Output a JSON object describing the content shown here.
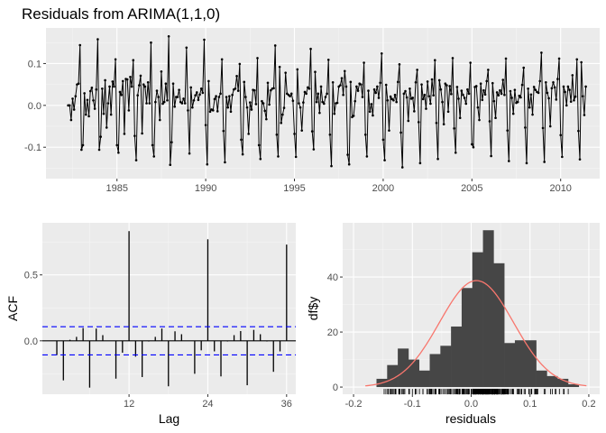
{
  "chart_data": [
    {
      "type": "line",
      "title": "Residuals from ARIMA(1,1,0)",
      "xlabel": "",
      "ylabel": "",
      "x_ticks": [
        1985,
        1990,
        1995,
        2000,
        2005,
        2010
      ],
      "y_ticks": [
        -0.1,
        0.0,
        0.1
      ],
      "y_tick_labels": [
        "-0.1",
        "0.0",
        "0.1"
      ],
      "xlim": [
        1981.0,
        2012.2
      ],
      "ylim": [
        -0.175,
        0.185
      ],
      "grid": true,
      "start": 1982.25,
      "frequency": 12,
      "series": [
        {
          "name": "residuals",
          "values": [
            0.0,
            0.0,
            -0.035,
            0.016,
            -0.01,
            0.022,
            0.05,
            0.052,
            0.144,
            -0.106,
            -0.095,
            0.029,
            -0.022,
            0.013,
            -0.026,
            0.034,
            0.042,
            0.012,
            -0.008,
            0.038,
            0.158,
            -0.106,
            -0.075,
            0.04,
            -0.02,
            0.06,
            -0.053,
            0.005,
            0.045,
            -0.022,
            0.057,
            0.045,
            0.11,
            -0.095,
            -0.113,
            0.032,
            0.025,
            0.058,
            -0.068,
            0.063,
            0.062,
            -0.012,
            0.068,
            0.045,
            0.108,
            -0.073,
            -0.131,
            0.024,
            0.048,
            0.071,
            -0.067,
            0.05,
            0.045,
            0.005,
            0.055,
            0.005,
            0.15,
            -0.095,
            -0.122,
            0.008,
            0.035,
            0.02,
            -0.035,
            0.081,
            0.004,
            0.008,
            0.052,
            0.012,
            0.165,
            -0.142,
            -0.088,
            0.052,
            -0.003,
            0.02,
            0.02,
            0.037,
            0.008,
            0.005,
            0.016,
            0.005,
            0.138,
            -0.012,
            -0.115,
            0.043,
            -0.005,
            0.012,
            0.024,
            0.031,
            0.013,
            0.026,
            0.04,
            0.03,
            0.157,
            -0.047,
            -0.141,
            0.058,
            -0.015,
            -0.01,
            -0.012,
            0.015,
            0.022,
            -0.014,
            0.02,
            0.028,
            0.11,
            -0.061,
            -0.136,
            0.02,
            -0.005,
            0.022,
            -0.015,
            0.025,
            0.038,
            0.04,
            0.07,
            0.035,
            0.099,
            -0.082,
            -0.117,
            0.056,
            0.02,
            -0.005,
            -0.068,
            0.007,
            -0.01,
            0.037,
            0.036,
            0.003,
            0.113,
            -0.095,
            -0.128,
            0.01,
            0.005,
            -0.013,
            -0.033,
            0.054,
            0.002,
            0.036,
            0.04,
            0.041,
            0.143,
            -0.07,
            -0.122,
            0.092,
            -0.042,
            -0.022,
            -0.006,
            0.078,
            0.028,
            0.025,
            0.022,
            0.028,
            0.011,
            -0.068,
            -0.123,
            0.086,
            0.005,
            -0.005,
            -0.06,
            0.007,
            0.032,
            0.028,
            0.043,
            0.04,
            0.135,
            -0.062,
            -0.105,
            0.08,
            0.008,
            0.028,
            -0.018,
            0.045,
            0.008,
            0.004,
            0.02,
            0.028,
            0.109,
            -0.07,
            -0.145,
            0.055,
            -0.02,
            0.005,
            0.006,
            0.045,
            0.048,
            0.065,
            0.025,
            0.082,
            0.045,
            -0.118,
            -0.141,
            0.056,
            -0.028,
            -0.025,
            0.01,
            0.045,
            0.035,
            0.052,
            0.05,
            0.02,
            0.102,
            -0.07,
            -0.122,
            0.035,
            -0.015,
            0.003,
            -0.024,
            0.038,
            0.03,
            0.045,
            0.018,
            0.054,
            0.124,
            -0.082,
            -0.131,
            0.049,
            0.012,
            -0.06,
            0.021,
            0.015,
            0.012,
            0.025,
            0.008,
            0.056,
            0.098,
            -0.065,
            -0.148,
            0.028,
            0.034,
            0.019,
            -0.037,
            0.04,
            0.016,
            0.018,
            -0.014,
            0.055,
            0.085,
            -0.04,
            -0.138,
            0.05,
            0.015,
            0.025,
            -0.008,
            0.057,
            0.022,
            0.004,
            0.062,
            0.024,
            0.108,
            -0.042,
            -0.128,
            0.06,
            0.038,
            0.008,
            -0.045,
            0.052,
            0.048,
            -0.015,
            0.046,
            0.027,
            0.113,
            -0.055,
            -0.113,
            0.044,
            0.016,
            -0.03,
            0.035,
            0.025,
            0.018,
            0.004,
            0.038,
            0.028,
            0.102,
            -0.093,
            -0.1,
            0.044,
            0.046,
            -0.005,
            -0.035,
            0.052,
            0.013,
            0.036,
            0.026,
            0.058,
            0.085,
            -0.038,
            -0.121,
            0.053,
            0.01,
            -0.03,
            0.031,
            0.024,
            0.036,
            0.028,
            0.061,
            0.025,
            0.112,
            -0.06,
            -0.133,
            0.034,
            0.018,
            -0.02,
            0.037,
            0.006,
            0.008,
            0.023,
            0.019,
            0.049,
            0.09,
            -0.053,
            -0.138,
            0.04,
            -0.005,
            0.026,
            -0.022,
            0.044,
            0.037,
            0.032,
            0.03,
            0.058,
            0.126,
            -0.054,
            -0.135,
            0.055,
            0.03,
            0.017,
            -0.05,
            0.041,
            0.055,
            0.043,
            0.014,
            0.063,
            0.112,
            -0.071,
            -0.123,
            0.045,
            0.032,
            0.0,
            0.045,
            0.037,
            0.009,
            0.072,
            0.012,
            0.021,
            0.11,
            -0.061,
            -0.129,
            0.103,
            0.022,
            -0.023,
            0.045
          ]
        }
      ]
    },
    {
      "type": "bar",
      "subtype": "acf",
      "title": "",
      "xlabel": "Lag",
      "ylabel": "ACF",
      "x_ticks": [
        12,
        24,
        36
      ],
      "y_ticks": [
        0.0,
        0.5
      ],
      "y_tick_labels": [
        "0.0",
        "0.5"
      ],
      "xlim": [
        -1.2,
        37.4
      ],
      "ylim": [
        -0.405,
        0.895
      ],
      "confidence_bound": 0.107,
      "confidence_color": "#0000ff",
      "lags": [
        1,
        2,
        3,
        4,
        5,
        6,
        7,
        8,
        9,
        10,
        11,
        12,
        13,
        14,
        15,
        16,
        17,
        18,
        19,
        20,
        21,
        22,
        23,
        24,
        25,
        26,
        27,
        28,
        29,
        30,
        31,
        32,
        33,
        34,
        35,
        36
      ],
      "values": [
        -0.108,
        -0.3,
        0.008,
        0.03,
        0.097,
        -0.355,
        0.093,
        0.043,
        0.0,
        -0.287,
        -0.09,
        0.832,
        -0.12,
        -0.275,
        -0.005,
        0.03,
        0.093,
        -0.345,
        0.072,
        0.05,
        0.0,
        -0.25,
        -0.072,
        0.77,
        -0.08,
        -0.27,
        -0.005,
        0.043,
        0.074,
        -0.337,
        0.083,
        0.05,
        -0.005,
        -0.235,
        -0.08,
        0.73
      ]
    },
    {
      "type": "histogram",
      "title": "",
      "xlabel": "residuals",
      "ylabel": "df$y",
      "x_ticks": [
        -0.2,
        -0.1,
        0.0,
        0.1,
        0.2
      ],
      "x_tick_labels": [
        "-0.2",
        "-0.1",
        "0.0",
        "0.1",
        "0.2"
      ],
      "y_ticks": [
        0,
        20,
        40
      ],
      "y_tick_labels": [
        "0",
        "20",
        "40"
      ],
      "xlim": [
        -0.2185,
        0.2185
      ],
      "ylim": [
        -2.6,
        59.7
      ],
      "bin_start": -0.161,
      "bin_width": 0.0181,
      "counts": [
        3,
        8,
        14,
        10,
        6,
        12,
        15,
        22,
        36,
        49,
        57,
        45,
        16,
        17,
        17,
        6,
        4,
        3,
        1
      ],
      "normal_curve": {
        "mean": 0.009,
        "peak": 38.7,
        "sd": 0.063,
        "x_range": [
          -0.18,
          0.196
        ],
        "color": "#f8766d"
      },
      "bar_color": "#464646",
      "rug": true
    }
  ],
  "panel_bg": "#ebebeb",
  "grid_major": "#ffffff",
  "grid_minor": "#f5f5f5"
}
